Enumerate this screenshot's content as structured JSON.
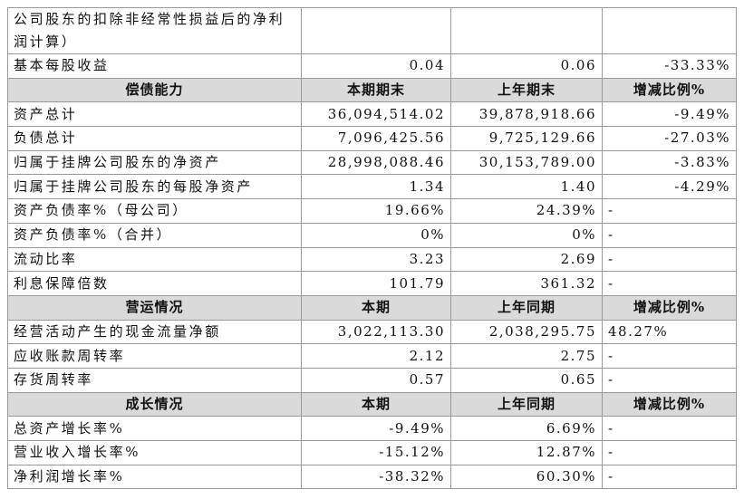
{
  "table": {
    "top_rows": [
      [
        "公司股东的扣除非经常性损益后的净利润计算）"
      ],
      [
        "基本每股收益",
        "0.04",
        "0.06",
        "-33.33%"
      ]
    ],
    "sections": [
      {
        "header": [
          "偿债能力",
          "本期期末",
          "上年期末",
          "增减比例%"
        ],
        "rows": [
          [
            "资产总计",
            "36,094,514.02",
            "39,878,918.66",
            "-9.49%"
          ],
          [
            "负债总计",
            "7,096,425.56",
            "9,725,129.66",
            "-27.03%"
          ],
          [
            "归属于挂牌公司股东的净资产",
            "28,998,088.46",
            "30,153,789.00",
            "-3.83%"
          ],
          [
            "归属于挂牌公司股东的每股净资产",
            "1.34",
            "1.40",
            "-4.29%"
          ],
          [
            "资产负债率%（母公司）",
            "19.66%",
            "24.39%",
            "-"
          ],
          [
            "资产负债率%（合并）",
            "0%",
            "0%",
            "-"
          ],
          [
            "流动比率",
            "3.23",
            "2.69",
            "-"
          ],
          [
            "利息保障倍数",
            "101.79",
            "361.32",
            "-"
          ]
        ]
      },
      {
        "header": [
          "营运情况",
          "本期",
          "上年同期",
          "增减比例%"
        ],
        "rows": [
          [
            "经营活动产生的现金流量净额",
            "3,022,113.30",
            "2,038,295.75",
            "48.27%"
          ],
          [
            "应收账款周转率",
            "2.12",
            "2.75",
            "-"
          ],
          [
            "存货周转率",
            "0.57",
            "0.65",
            "-"
          ]
        ]
      },
      {
        "header": [
          "成长情况",
          "本期",
          "上年同期",
          "增减比例%"
        ],
        "rows": [
          [
            "总资产增长率%",
            "-9.49%",
            "6.69%",
            "-"
          ],
          [
            "营业收入增长率%",
            "-15.12%",
            "12.87%",
            "-"
          ],
          [
            "净利润增长率%",
            "-38.32%",
            "60.30%",
            "-"
          ]
        ]
      }
    ]
  }
}
